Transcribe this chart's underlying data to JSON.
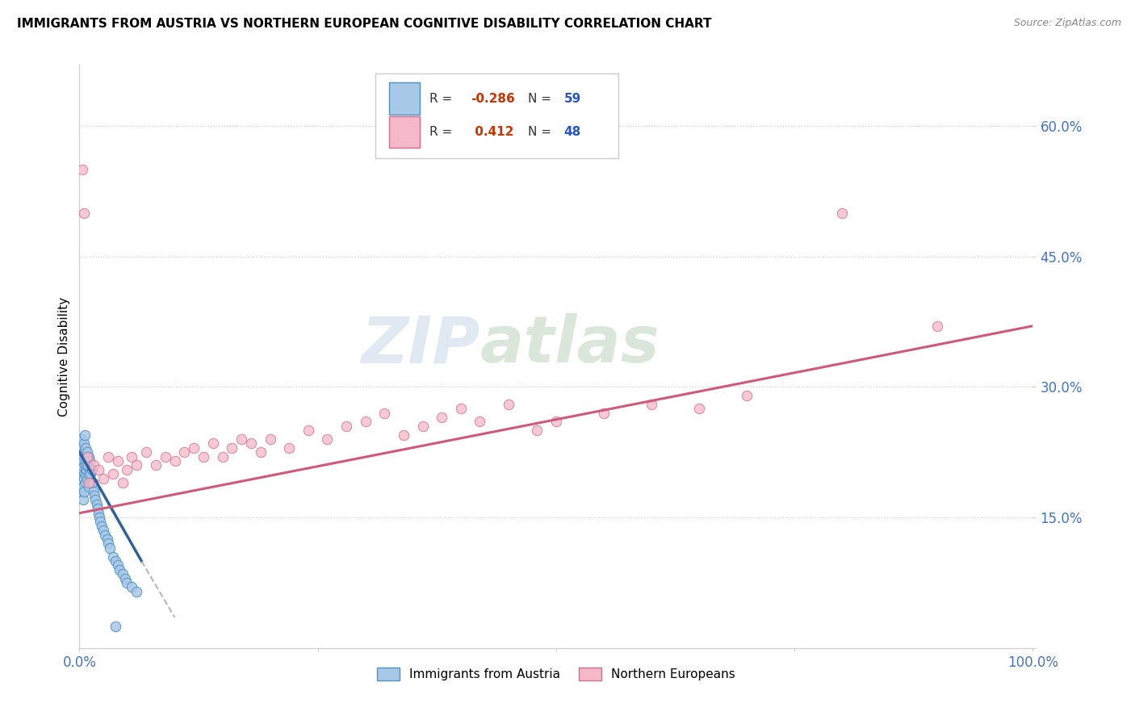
{
  "title": "IMMIGRANTS FROM AUSTRIA VS NORTHERN EUROPEAN COGNITIVE DISABILITY CORRELATION CHART",
  "source": "Source: ZipAtlas.com",
  "ylabel": "Cognitive Disability",
  "xlim": [
    0,
    100
  ],
  "ylim": [
    0,
    67
  ],
  "yticks": [
    0,
    15,
    30,
    45,
    60
  ],
  "ytick_labels": [
    "",
    "15.0%",
    "30.0%",
    "45.0%",
    "60.0%"
  ],
  "xtick_positions": [
    0,
    25,
    50,
    75,
    100
  ],
  "xtick_labels": [
    "0.0%",
    "",
    "",
    "",
    "100.0%"
  ],
  "color_blue": "#a8c8e8",
  "color_blue_edge": "#5090c0",
  "color_blue_line": "#3060a0",
  "color_pink": "#f4b8c8",
  "color_pink_edge": "#d07090",
  "color_pink_line": "#d05878",
  "background": "#ffffff",
  "watermark_zip": "ZIP",
  "watermark_atlas": "atlas",
  "legend_r1": "R = -0.286",
  "legend_n1": "N = 59",
  "legend_r2": "R =  0.412",
  "legend_n2": "N = 48",
  "austria_x": [
    0.1,
    0.15,
    0.2,
    0.2,
    0.25,
    0.3,
    0.3,
    0.35,
    0.35,
    0.4,
    0.4,
    0.45,
    0.45,
    0.5,
    0.5,
    0.5,
    0.55,
    0.55,
    0.6,
    0.6,
    0.65,
    0.65,
    0.7,
    0.7,
    0.75,
    0.8,
    0.85,
    0.9,
    0.95,
    1.0,
    1.0,
    1.1,
    1.15,
    1.2,
    1.3,
    1.4,
    1.5,
    1.6,
    1.7,
    1.8,
    1.9,
    2.0,
    2.1,
    2.2,
    2.3,
    2.5,
    2.7,
    2.9,
    3.0,
    3.2,
    3.5,
    3.8,
    4.0,
    4.2,
    4.5,
    4.8,
    5.0,
    5.5,
    6.0
  ],
  "austria_y": [
    22.0,
    18.0,
    20.5,
    24.0,
    21.0,
    19.0,
    23.0,
    22.0,
    17.0,
    21.5,
    18.5,
    20.0,
    23.5,
    19.5,
    22.5,
    18.0,
    21.0,
    24.5,
    20.0,
    23.0,
    21.5,
    19.0,
    22.0,
    20.5,
    21.0,
    22.5,
    19.5,
    21.0,
    20.0,
    22.0,
    18.5,
    21.5,
    20.0,
    19.0,
    20.5,
    19.0,
    18.0,
    17.5,
    17.0,
    16.5,
    16.0,
    15.5,
    15.0,
    14.5,
    14.0,
    13.5,
    13.0,
    12.5,
    12.0,
    11.5,
    10.5,
    10.0,
    9.5,
    9.0,
    8.5,
    8.0,
    7.5,
    7.0,
    6.5
  ],
  "austria_outlier_x": [
    3.8
  ],
  "austria_outlier_y": [
    2.5
  ],
  "northern_x": [
    0.3,
    0.5,
    0.8,
    1.0,
    1.5,
    2.0,
    2.5,
    3.0,
    3.5,
    4.0,
    4.5,
    5.0,
    5.5,
    6.0,
    7.0,
    8.0,
    9.0,
    10.0,
    11.0,
    12.0,
    13.0,
    14.0,
    15.0,
    16.0,
    17.0,
    18.0,
    19.0,
    20.0,
    22.0,
    24.0,
    26.0,
    28.0,
    30.0,
    32.0,
    34.0,
    36.0,
    38.0,
    40.0,
    42.0,
    45.0,
    48.0,
    50.0,
    55.0,
    60.0,
    65.0,
    70.0,
    80.0,
    90.0
  ],
  "northern_y": [
    55.0,
    50.0,
    22.0,
    19.0,
    21.0,
    20.5,
    19.5,
    22.0,
    20.0,
    21.5,
    19.0,
    20.5,
    22.0,
    21.0,
    22.5,
    21.0,
    22.0,
    21.5,
    22.5,
    23.0,
    22.0,
    23.5,
    22.0,
    23.0,
    24.0,
    23.5,
    22.5,
    24.0,
    23.0,
    25.0,
    24.0,
    25.5,
    26.0,
    27.0,
    24.5,
    25.5,
    26.5,
    27.5,
    26.0,
    28.0,
    25.0,
    26.0,
    27.0,
    28.0,
    27.5,
    29.0,
    50.0,
    37.0
  ],
  "blue_line_x0": 0.0,
  "blue_line_y0": 22.5,
  "blue_line_x1": 6.5,
  "blue_line_y1": 10.0,
  "blue_dash_x0": 6.5,
  "blue_dash_y0": 10.0,
  "blue_dash_x1": 10.0,
  "blue_dash_y1": 3.5,
  "pink_line_x0": 0.0,
  "pink_line_y0": 15.5,
  "pink_line_x1": 100.0,
  "pink_line_y1": 37.0
}
